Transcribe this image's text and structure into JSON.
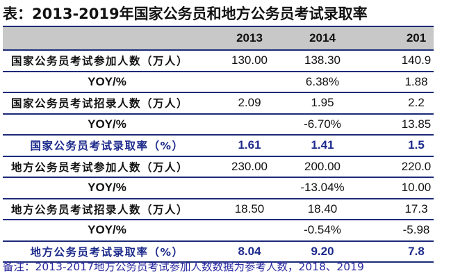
{
  "title": "表：2013-2019年国家公务员和地方公务员考试录取率",
  "header": [
    "",
    "2013",
    "2014",
    "201"
  ],
  "rows": [
    {
      "type": "lab",
      "cells": [
        "国家公务员考试参加人数（万人）",
        "130.00",
        "138.30",
        "140.9"
      ]
    },
    {
      "type": "yoy",
      "cells": [
        "YOY/%",
        "",
        "6.38%",
        "1.88"
      ]
    },
    {
      "type": "lab",
      "cells": [
        "国家公务员考试招录人数（万人）",
        "2.09",
        "1.95",
        "2.2"
      ]
    },
    {
      "type": "yoy",
      "cells": [
        "YOY/%",
        "",
        "-6.70%",
        "13.85"
      ]
    },
    {
      "type": "rate",
      "cells": [
        "国家公务员考试录取率（%）",
        "1.61",
        "1.41",
        "1.5"
      ]
    },
    {
      "type": "lab",
      "cells": [
        "地方公务员考试参加人数（万人）",
        "230.00",
        "200.00",
        "220.0"
      ]
    },
    {
      "type": "yoy",
      "cells": [
        "YOY/%",
        "",
        "-13.04%",
        "10.00"
      ]
    },
    {
      "type": "lab",
      "cells": [
        "地方公务员考试招录人数（万人）",
        "18.50",
        "18.40",
        "17.3"
      ]
    },
    {
      "type": "yoy",
      "cells": [
        "YOY/%",
        "",
        "-0.54%",
        "-5.98"
      ]
    },
    {
      "type": "rate",
      "cells": [
        "地方公务员考试录取率（%）",
        "8.04",
        "9.20",
        "7.8"
      ]
    }
  ],
  "note": "备注：2013-2017地方公务员考试参加人数数据为参考人数，2018、2019",
  "colors": {
    "rule": "#1c2a78",
    "header_bg": "#c8c8c8",
    "rate_text": "#1c2a8c",
    "note_text": "#2a2aa0"
  }
}
